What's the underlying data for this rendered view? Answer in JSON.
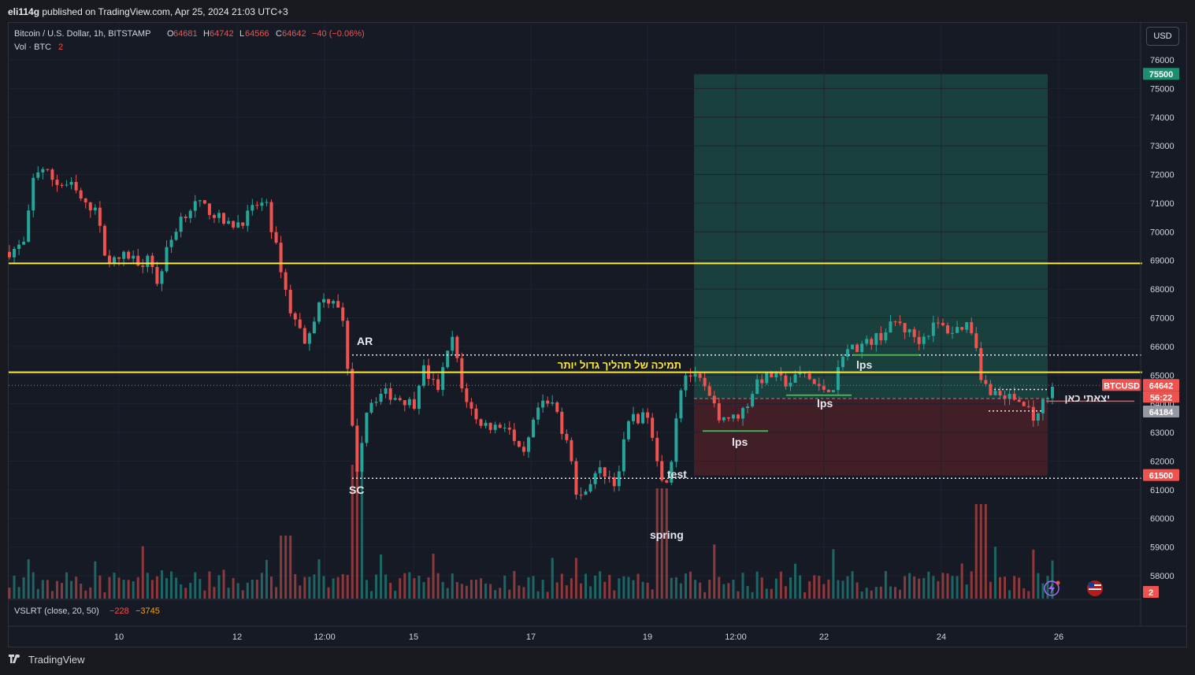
{
  "header": {
    "publisher_user": "eli114g",
    "publisher_rest": " published on TradingView.com, Apr 25, 2024 21:03 UTC+3"
  },
  "legend": {
    "symbol": "Bitcoin / U.S. Dollar, 1h, BITSTAMP",
    "o_label": "O",
    "o_value": "64681",
    "h_label": "H",
    "h_value": "64742",
    "l_label": "L",
    "l_value": "64566",
    "c_label": "C",
    "c_value": "64642",
    "change": "−40 (−0.06%)",
    "vol_label": "Vol · BTC",
    "vol_value": "2"
  },
  "indicator": {
    "name": "VSLRT (close, 20, 50)",
    "v1": "−228",
    "v2": "−3745"
  },
  "currency_button": "USD",
  "footer_brand": "TradingView",
  "colors": {
    "up": "#26a69a",
    "down": "#ef5350",
    "yellow_line": "#ffeb3b",
    "target_zone": "#1b4d45",
    "stop_zone": "#4a2028",
    "background": "#161a25"
  },
  "chart_data": {
    "type": "candlestick",
    "symbol": "BTCUSD",
    "timeframe": "1h",
    "y_axis": {
      "ylim": [
        57300,
        76600
      ],
      "ticks": [
        "76000",
        "75000",
        "74000",
        "73000",
        "72000",
        "71000",
        "70000",
        "69000",
        "68000",
        "67000",
        "66000",
        "65000",
        "64000",
        "63000",
        "62000",
        "61000",
        "60000",
        "59000",
        "58000"
      ]
    },
    "x_axis": {
      "ticks": [
        "10",
        "12",
        "12:00",
        "15",
        "17",
        "19",
        "12:00",
        "22",
        "24",
        "26"
      ]
    },
    "price_path": [
      {
        "t": 0,
        "p": 69300
      },
      {
        "t": 2,
        "p": 69600
      },
      {
        "t": 3,
        "p": 71800
      },
      {
        "t": 4,
        "p": 72300
      },
      {
        "t": 6,
        "p": 71700
      },
      {
        "t": 8,
        "p": 71600
      },
      {
        "t": 10,
        "p": 70800
      },
      {
        "t": 11,
        "p": 71000
      },
      {
        "t": 12,
        "p": 69500
      },
      {
        "t": 13,
        "p": 68900
      },
      {
        "t": 15,
        "p": 69200
      },
      {
        "t": 17,
        "p": 68900
      },
      {
        "t": 18,
        "p": 69300
      },
      {
        "t": 19,
        "p": 68100
      },
      {
        "t": 20,
        "p": 69200
      },
      {
        "t": 22,
        "p": 70500
      },
      {
        "t": 24,
        "p": 71000
      },
      {
        "t": 26,
        "p": 70700
      },
      {
        "t": 28,
        "p": 70200
      },
      {
        "t": 30,
        "p": 70400
      },
      {
        "t": 32,
        "p": 71000
      },
      {
        "t": 33,
        "p": 70900
      },
      {
        "t": 35,
        "p": 68600
      },
      {
        "t": 36,
        "p": 67300
      },
      {
        "t": 38,
        "p": 66200
      },
      {
        "t": 40,
        "p": 67600
      },
      {
        "t": 42,
        "p": 67700
      },
      {
        "t": 43,
        "p": 66600
      },
      {
        "t": 44,
        "p": 63200
      },
      {
        "t": 44.7,
        "p": 61700
      },
      {
        "t": 46,
        "p": 64000
      },
      {
        "t": 48,
        "p": 64400
      },
      {
        "t": 50,
        "p": 64200
      },
      {
        "t": 52,
        "p": 64000
      },
      {
        "t": 53,
        "p": 65300
      },
      {
        "t": 55,
        "p": 64500
      },
      {
        "t": 57,
        "p": 66400
      },
      {
        "t": 58,
        "p": 64600
      },
      {
        "t": 60,
        "p": 63400
      },
      {
        "t": 62,
        "p": 63200
      },
      {
        "t": 64,
        "p": 63300
      },
      {
        "t": 65,
        "p": 62500
      },
      {
        "t": 66,
        "p": 62100
      },
      {
        "t": 68,
        "p": 63900
      },
      {
        "t": 70,
        "p": 64000
      },
      {
        "t": 71,
        "p": 63100
      },
      {
        "t": 72,
        "p": 62600
      },
      {
        "t": 73,
        "p": 60400
      },
      {
        "t": 74,
        "p": 61100
      },
      {
        "t": 76,
        "p": 61700
      },
      {
        "t": 78,
        "p": 61200
      },
      {
        "t": 79,
        "p": 62700
      },
      {
        "t": 80,
        "p": 63700
      },
      {
        "t": 81,
        "p": 63400
      },
      {
        "t": 82,
        "p": 63700
      },
      {
        "t": 83,
        "p": 62500
      },
      {
        "t": 84,
        "p": 61000
      },
      {
        "t": 85,
        "p": 62000
      },
      {
        "t": 86,
        "p": 64400
      },
      {
        "t": 87,
        "p": 65100
      },
      {
        "t": 89,
        "p": 64700
      },
      {
        "t": 91,
        "p": 63600
      },
      {
        "t": 93,
        "p": 63500
      },
      {
        "t": 94,
        "p": 63700
      },
      {
        "t": 95,
        "p": 64100
      },
      {
        "t": 96,
        "p": 64800
      },
      {
        "t": 98,
        "p": 65000
      },
      {
        "t": 100,
        "p": 64700
      },
      {
        "t": 102,
        "p": 65100
      },
      {
        "t": 104,
        "p": 64500
      },
      {
        "t": 106,
        "p": 64600
      },
      {
        "t": 107,
        "p": 65800
      },
      {
        "t": 108,
        "p": 65900
      },
      {
        "t": 110,
        "p": 66100
      },
      {
        "t": 112,
        "p": 66400
      },
      {
        "t": 114,
        "p": 66900
      },
      {
        "t": 115,
        "p": 66600
      },
      {
        "t": 117,
        "p": 66200
      },
      {
        "t": 119,
        "p": 66800
      },
      {
        "t": 121,
        "p": 66500
      },
      {
        "t": 123,
        "p": 66800
      },
      {
        "t": 124,
        "p": 66400
      },
      {
        "t": 125,
        "p": 64700
      },
      {
        "t": 127,
        "p": 64300
      },
      {
        "t": 129,
        "p": 64200
      },
      {
        "t": 131,
        "p": 63800
      },
      {
        "t": 132,
        "p": 63400
      },
      {
        "t": 133,
        "p": 64200
      },
      {
        "t": 134,
        "p": 64642
      }
    ],
    "horizontal_levels": [
      {
        "price": 68900,
        "style": "solid",
        "color": "yellow"
      },
      {
        "price": 65100,
        "style": "solid",
        "color": "yellow"
      },
      {
        "price": 65700,
        "style": "dotted",
        "color": "white"
      },
      {
        "price": 61400,
        "style": "dotted",
        "color": "white"
      }
    ],
    "position_tool": {
      "entry": 64184,
      "target": 75500,
      "stop": 61500
    },
    "price_labels": {
      "target": "75500",
      "symbol_tag": "BTCUSD",
      "current": "64642",
      "countdown": "56:22",
      "entry": "64184",
      "stop": "61500",
      "volume": "2"
    },
    "annotations": {
      "ar": "AR",
      "sc": "SC",
      "test": "test",
      "spring": "spring",
      "lps1": "lps",
      "lps2": "lps",
      "lps3": "lps",
      "support_text": "תמיכה של תהליך גדול יותר",
      "exit_text": "יצאתי כאן"
    }
  }
}
